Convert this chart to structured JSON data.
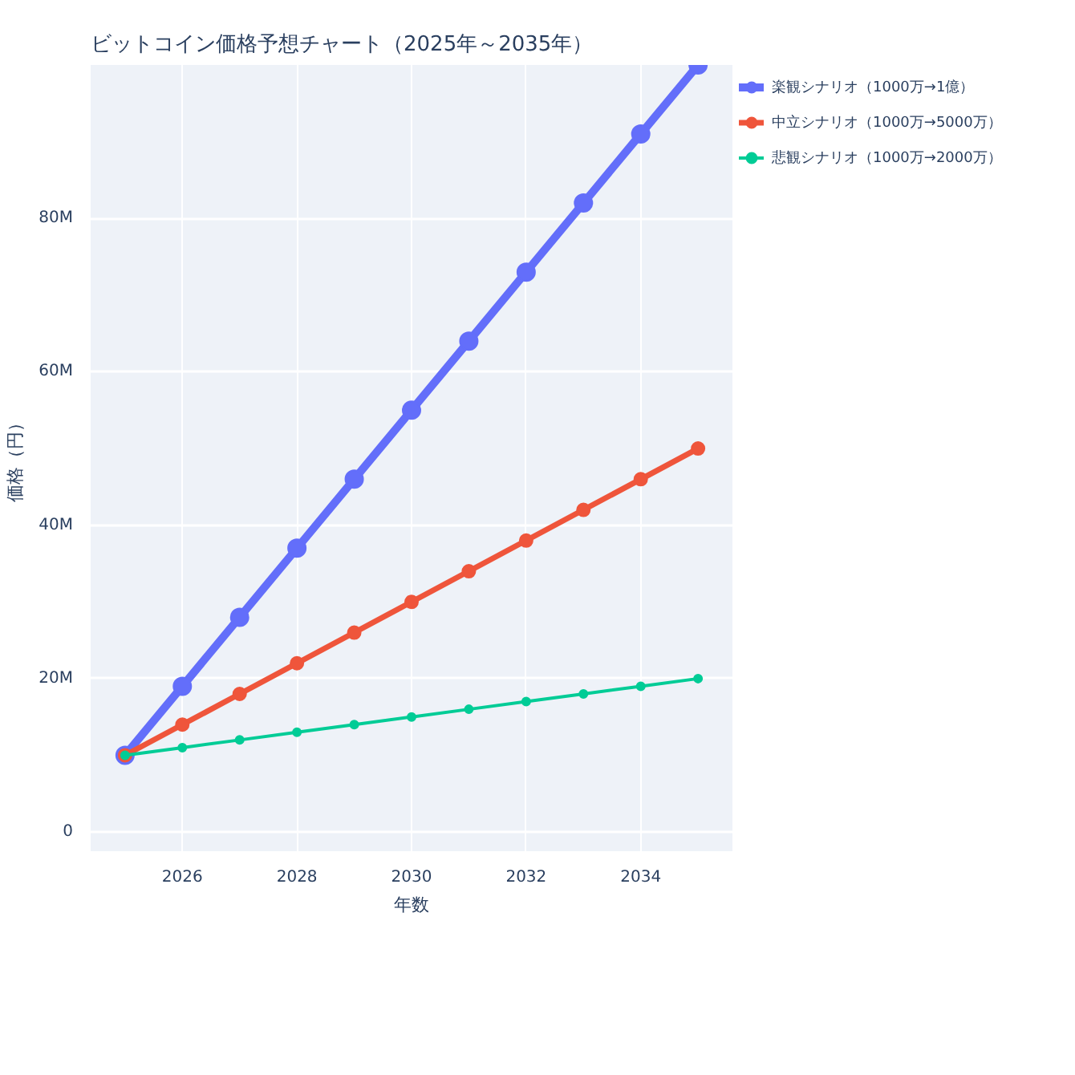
{
  "chart_data": {
    "type": "line",
    "title": "ビットコイン価格予想チャート（2025年～2035年）",
    "xlabel": "年数",
    "ylabel": "価格（円）",
    "x": [
      2025,
      2026,
      2027,
      2028,
      2029,
      2030,
      2031,
      2032,
      2033,
      2034,
      2035
    ],
    "series": [
      {
        "name": "楽観シナリオ（1000万→1億）",
        "color": "#636efa",
        "values": [
          10000000,
          19000000,
          28000000,
          37000000,
          46000000,
          55000000,
          64000000,
          73000000,
          82000000,
          91000000,
          100000000
        ]
      },
      {
        "name": "中立シナリオ（1000万→5000万）",
        "color": "#ef553b",
        "values": [
          10000000,
          14000000,
          18000000,
          22000000,
          26000000,
          30000000,
          34000000,
          38000000,
          42000000,
          46000000,
          50000000
        ]
      },
      {
        "name": "悲観シナリオ（1000万→2000万）",
        "color": "#00cc96",
        "values": [
          10000000,
          11000000,
          12000000,
          13000000,
          14000000,
          15000000,
          16000000,
          17000000,
          18000000,
          19000000,
          20000000
        ]
      }
    ],
    "xlim": [
      2024.4,
      2035.6
    ],
    "ylim": [
      -2500000,
      100000000
    ],
    "xticks": [
      2026,
      2028,
      2030,
      2032,
      2034
    ],
    "yticks": [
      {
        "value": 0,
        "label": "0"
      },
      {
        "value": 20000000,
        "label": "20M"
      },
      {
        "value": 40000000,
        "label": "40M"
      },
      {
        "value": 60000000,
        "label": "60M"
      },
      {
        "value": 80000000,
        "label": "80M"
      }
    ],
    "grid": true,
    "legend": "top right",
    "marker": "circle",
    "line_style": "solid"
  }
}
